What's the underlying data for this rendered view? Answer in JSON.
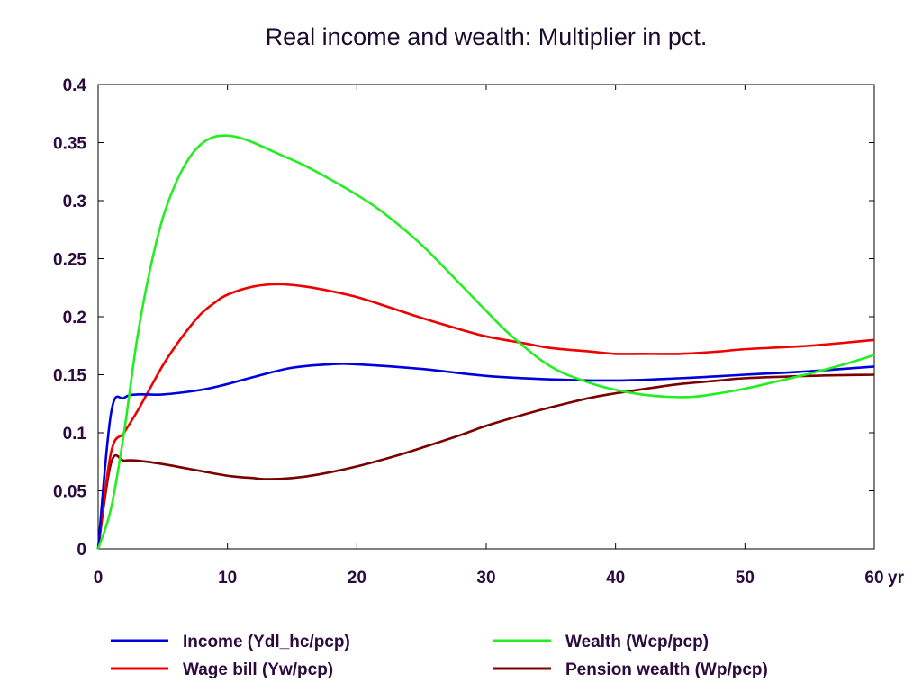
{
  "chart_data": {
    "type": "line",
    "title": "Real income and wealth: Multiplier in pct.",
    "x_unit_label": "yr",
    "xlim": [
      0,
      60
    ],
    "ylim": [
      0,
      0.4
    ],
    "x_ticks": [
      0,
      10,
      20,
      30,
      40,
      50,
      60
    ],
    "y_ticks": [
      0,
      0.05,
      0.1,
      0.15,
      0.2,
      0.25,
      0.3,
      0.35,
      0.4
    ],
    "y_tick_labels": [
      "0",
      "0.05",
      "0.1",
      "0.15",
      "0.2",
      "0.25",
      "0.3",
      "0.35",
      "0.4"
    ],
    "x_tick_labels": [
      "0",
      "10",
      "20",
      "30",
      "40",
      "50",
      "60"
    ],
    "legend_position": "bottom",
    "grid": false,
    "series": [
      {
        "name": "Income (Ydl_hc/pcp)",
        "color": "#0000dd",
        "x": [
          0,
          1,
          2,
          3,
          5,
          8,
          10,
          12,
          15,
          18,
          20,
          25,
          30,
          35,
          40,
          45,
          50,
          55,
          60
        ],
        "values": [
          0,
          0.117,
          0.13,
          0.133,
          0.133,
          0.137,
          0.142,
          0.148,
          0.156,
          0.159,
          0.159,
          0.155,
          0.149,
          0.146,
          0.145,
          0.147,
          0.15,
          0.153,
          0.157
        ]
      },
      {
        "name": "Wealth (Wcp/pcp)",
        "color": "#22ee22",
        "x": [
          0,
          1,
          2,
          3,
          4,
          5,
          6,
          7,
          8,
          9,
          10,
          11,
          12,
          14,
          16,
          18,
          20,
          22,
          25,
          28,
          30,
          32,
          35,
          38,
          40,
          42,
          44,
          46,
          48,
          50,
          52,
          55,
          58,
          60
        ],
        "values": [
          0,
          0.035,
          0.1,
          0.18,
          0.24,
          0.285,
          0.315,
          0.336,
          0.349,
          0.355,
          0.356,
          0.354,
          0.35,
          0.34,
          0.33,
          0.318,
          0.305,
          0.29,
          0.262,
          0.228,
          0.205,
          0.183,
          0.157,
          0.143,
          0.137,
          0.133,
          0.131,
          0.131,
          0.134,
          0.138,
          0.143,
          0.151,
          0.16,
          0.167
        ]
      },
      {
        "name": "Wage bill (Yw/pcp)",
        "color": "#ee0000",
        "x": [
          0,
          1,
          2,
          3,
          4,
          5,
          6,
          7,
          8,
          9,
          10,
          12,
          14,
          16,
          18,
          20,
          22,
          25,
          28,
          30,
          33,
          35,
          38,
          40,
          42,
          45,
          48,
          50,
          55,
          60
        ],
        "values": [
          0,
          0.083,
          0.1,
          0.118,
          0.138,
          0.158,
          0.175,
          0.19,
          0.203,
          0.212,
          0.219,
          0.226,
          0.228,
          0.226,
          0.222,
          0.217,
          0.21,
          0.199,
          0.189,
          0.183,
          0.177,
          0.173,
          0.17,
          0.168,
          0.168,
          0.168,
          0.17,
          0.172,
          0.175,
          0.18
        ]
      },
      {
        "name": "Pension wealth (Wp/pcp)",
        "color": "#7a0000",
        "x": [
          0,
          1,
          2,
          3,
          5,
          7,
          10,
          12,
          13,
          15,
          17,
          20,
          23,
          25,
          28,
          30,
          33,
          35,
          38,
          40,
          43,
          45,
          48,
          50,
          55,
          60
        ],
        "values": [
          0,
          0.074,
          0.076,
          0.076,
          0.073,
          0.069,
          0.063,
          0.061,
          0.06,
          0.061,
          0.064,
          0.071,
          0.08,
          0.087,
          0.098,
          0.106,
          0.116,
          0.122,
          0.13,
          0.134,
          0.139,
          0.142,
          0.145,
          0.147,
          0.149,
          0.15
        ]
      }
    ]
  }
}
